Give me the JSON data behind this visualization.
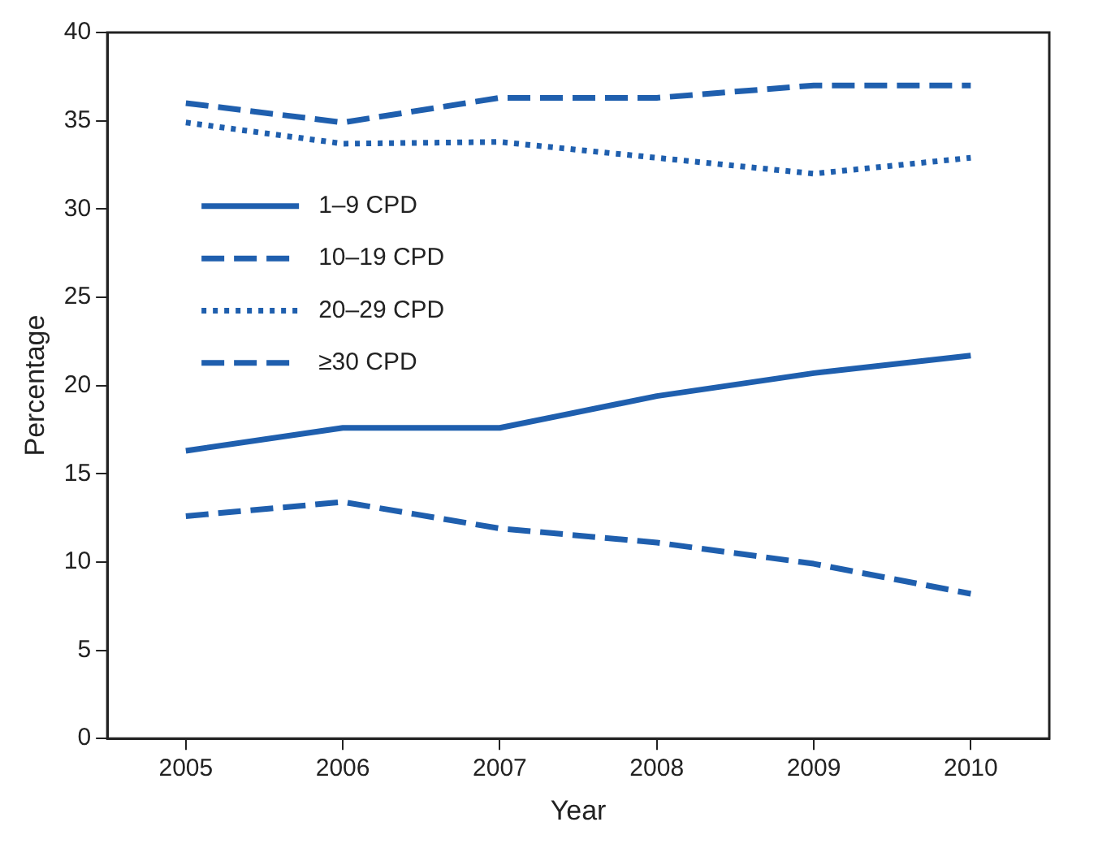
{
  "chart_data": {
    "type": "line",
    "xlabel": "Year",
    "ylabel": "Percentage",
    "categories": [
      "2005",
      "2006",
      "2007",
      "2008",
      "2009",
      "2010"
    ],
    "series": [
      {
        "name": "1–9 CPD",
        "color": "#1f5fae",
        "line_style": "solid",
        "values": [
          16.3,
          17.6,
          17.6,
          19.4,
          20.7,
          21.7
        ]
      },
      {
        "name": "10–19 CPD",
        "color": "#1f5fae",
        "line_style": "dashed",
        "values": [
          36.0,
          34.9,
          36.3,
          36.3,
          37.0,
          37.0
        ]
      },
      {
        "name": "20–29 CPD",
        "color": "#1f5fae",
        "line_style": "dotted",
        "values": [
          34.9,
          33.7,
          33.8,
          32.9,
          32.0,
          32.9
        ]
      },
      {
        "name": "≥30 CPD",
        "color": "#1f5fae",
        "line_style": "dashed",
        "values": [
          12.6,
          13.4,
          11.9,
          11.1,
          9.9,
          8.2
        ]
      }
    ],
    "ylim": [
      0,
      40
    ],
    "yticks": [
      0,
      5,
      10,
      15,
      20,
      25,
      30,
      35,
      40
    ],
    "grid": false,
    "legend": "top left",
    "marker": "none"
  }
}
